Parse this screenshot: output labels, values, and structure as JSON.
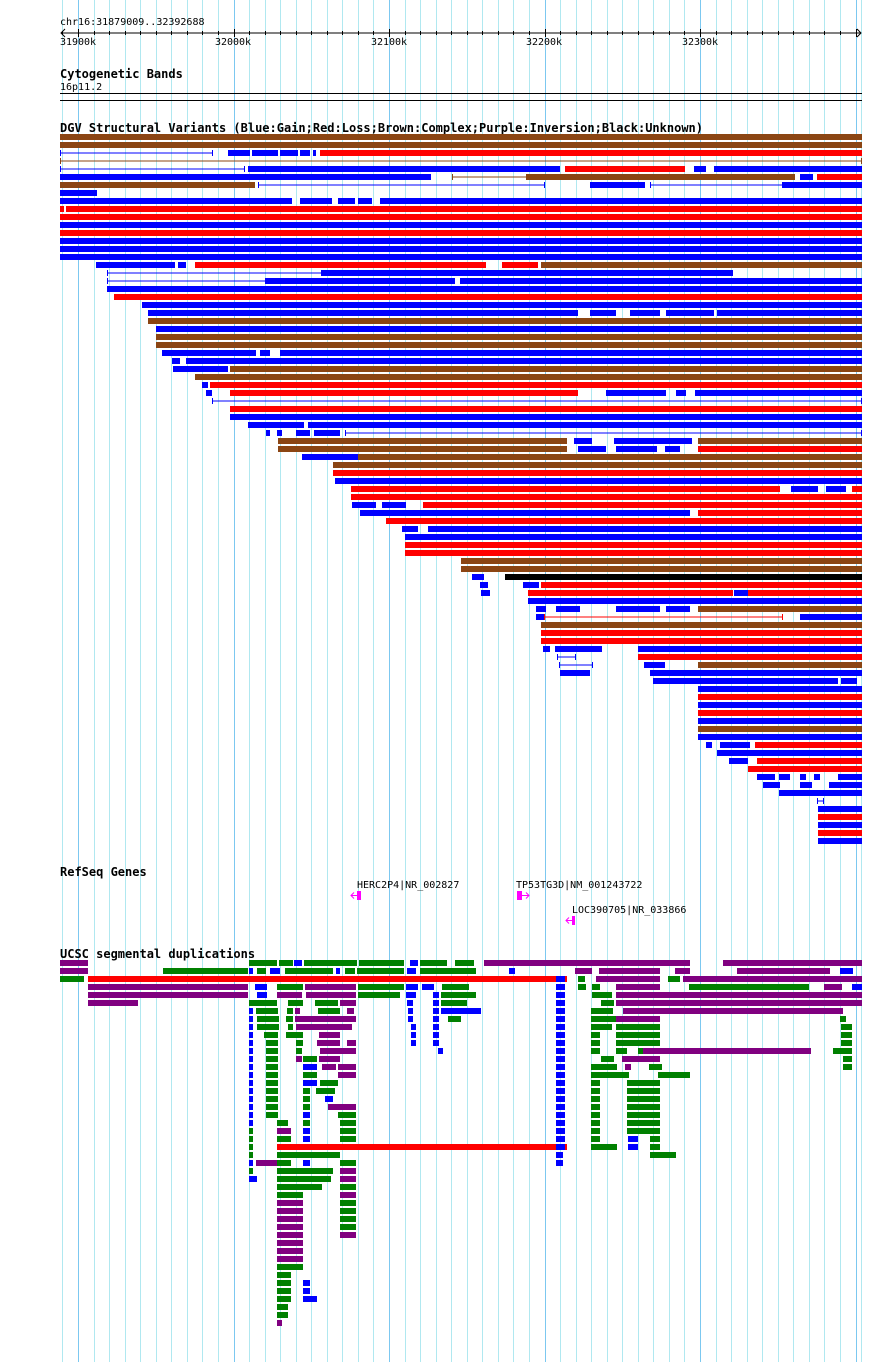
{
  "ruler": {
    "region": "chr16:31879009..32392688",
    "ticks": [
      "31900k",
      "32000k",
      "32100k",
      "32200k",
      "32300k"
    ]
  },
  "tracks": {
    "cytoband": {
      "title": "Cytogenetic Bands",
      "band": "16p11.2"
    },
    "dgv": {
      "title": "DGV Structural Variants (Blue:Gain;Red:Loss;Brown:Complex;Purple:Inversion;Black:Unknown)"
    },
    "refseq": {
      "title": "RefSeq Genes",
      "genes": [
        {
          "label": "HERC2P4|NR_002827",
          "strand": "-"
        },
        {
          "label": "TP53TG3D|NM_001243722",
          "strand": "+"
        },
        {
          "label": "LOC390705|NR_033866",
          "strand": "-"
        }
      ]
    },
    "segdup": {
      "title": "UCSC segmental duplications"
    }
  },
  "colors": {
    "gain": "#0000FF",
    "loss": "#FF0000",
    "complex": "#8B4513",
    "inversion": "#800080",
    "unknown": "#000000",
    "segdup_green": "#008000",
    "segdup_purple": "#800080",
    "gene": "#FF00FF",
    "grid_minor": "#B0E8F0",
    "grid_major": "#7CC8F0"
  }
}
